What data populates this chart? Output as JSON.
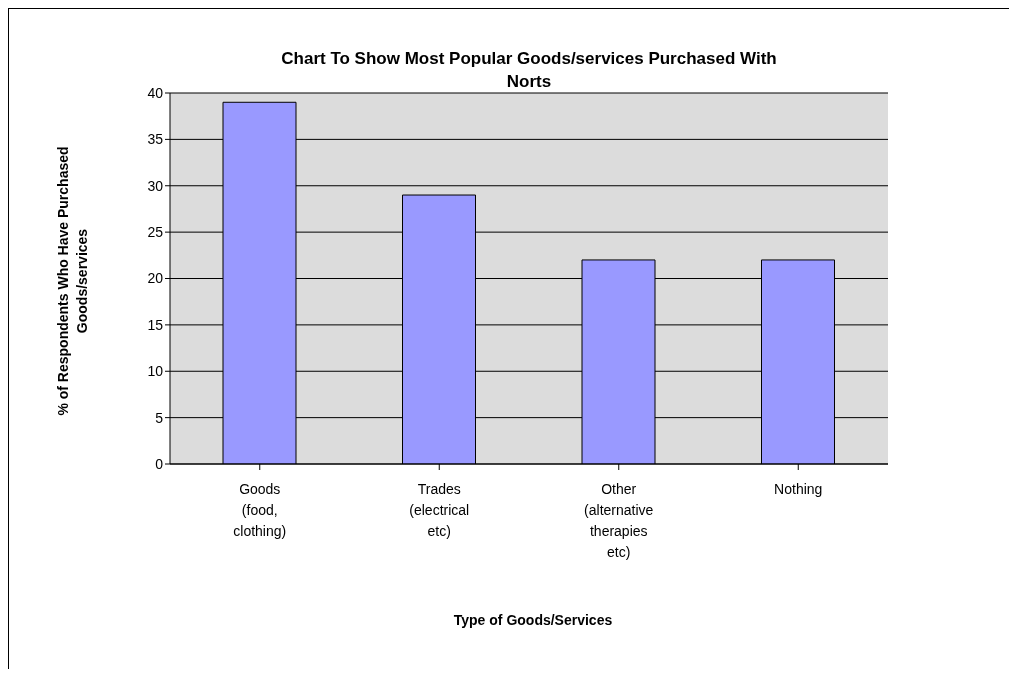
{
  "chart_data": {
    "type": "bar",
    "title": "Chart To Show Most Popular Goods/services Purchased With Norts",
    "xlabel": "Type of Goods/Services",
    "ylabel": "% of Respondents Who Have Purchased Goods/services",
    "categories": [
      "Goods (food, clothing)",
      "Trades (electrical etc)",
      "Other (alternative therapies etc)",
      "Nothing"
    ],
    "values": [
      39,
      29,
      22,
      22
    ],
    "color": "#9999ff",
    "ylim": [
      0,
      40
    ],
    "yticks": [
      0,
      5,
      10,
      15,
      20,
      25,
      30,
      35,
      40
    ],
    "grid": "y"
  }
}
